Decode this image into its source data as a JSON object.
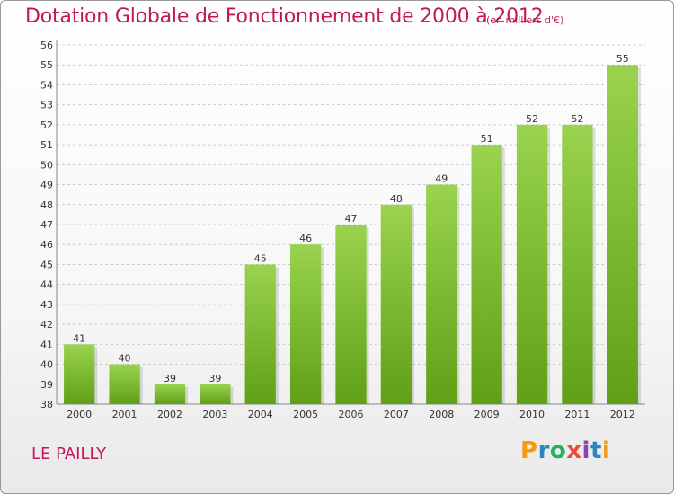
{
  "title": "Dotation Globale de Fonctionnement de 2000 à 2012",
  "subtitle": "(en milliers d'€)",
  "place": "LE PAILLY",
  "logo": {
    "text": "Proxiti",
    "letters": [
      "P",
      "r",
      "o",
      "x",
      "i",
      "t",
      "i"
    ]
  },
  "colors": {
    "title": "#c2185b",
    "bar_top": "#9ad34f",
    "bar_bottom": "#5fa016",
    "grid": "#cccccc"
  },
  "chart_data": {
    "type": "bar",
    "title": "Dotation Globale de Fonctionnement de 2000 à 2012",
    "categories": [
      "2000",
      "2001",
      "2002",
      "2003",
      "2004",
      "2005",
      "2006",
      "2007",
      "2008",
      "2009",
      "2010",
      "2011",
      "2012"
    ],
    "values": [
      41,
      40,
      39,
      39,
      45,
      46,
      47,
      48,
      49,
      51,
      52,
      52,
      55
    ],
    "ylim": [
      38,
      56
    ],
    "yticks": [
      38,
      39,
      40,
      41,
      42,
      43,
      44,
      45,
      46,
      47,
      48,
      49,
      50,
      51,
      52,
      53,
      54,
      55,
      56
    ],
    "xlabel": "",
    "ylabel": "",
    "grid": true,
    "data_labels": true
  }
}
